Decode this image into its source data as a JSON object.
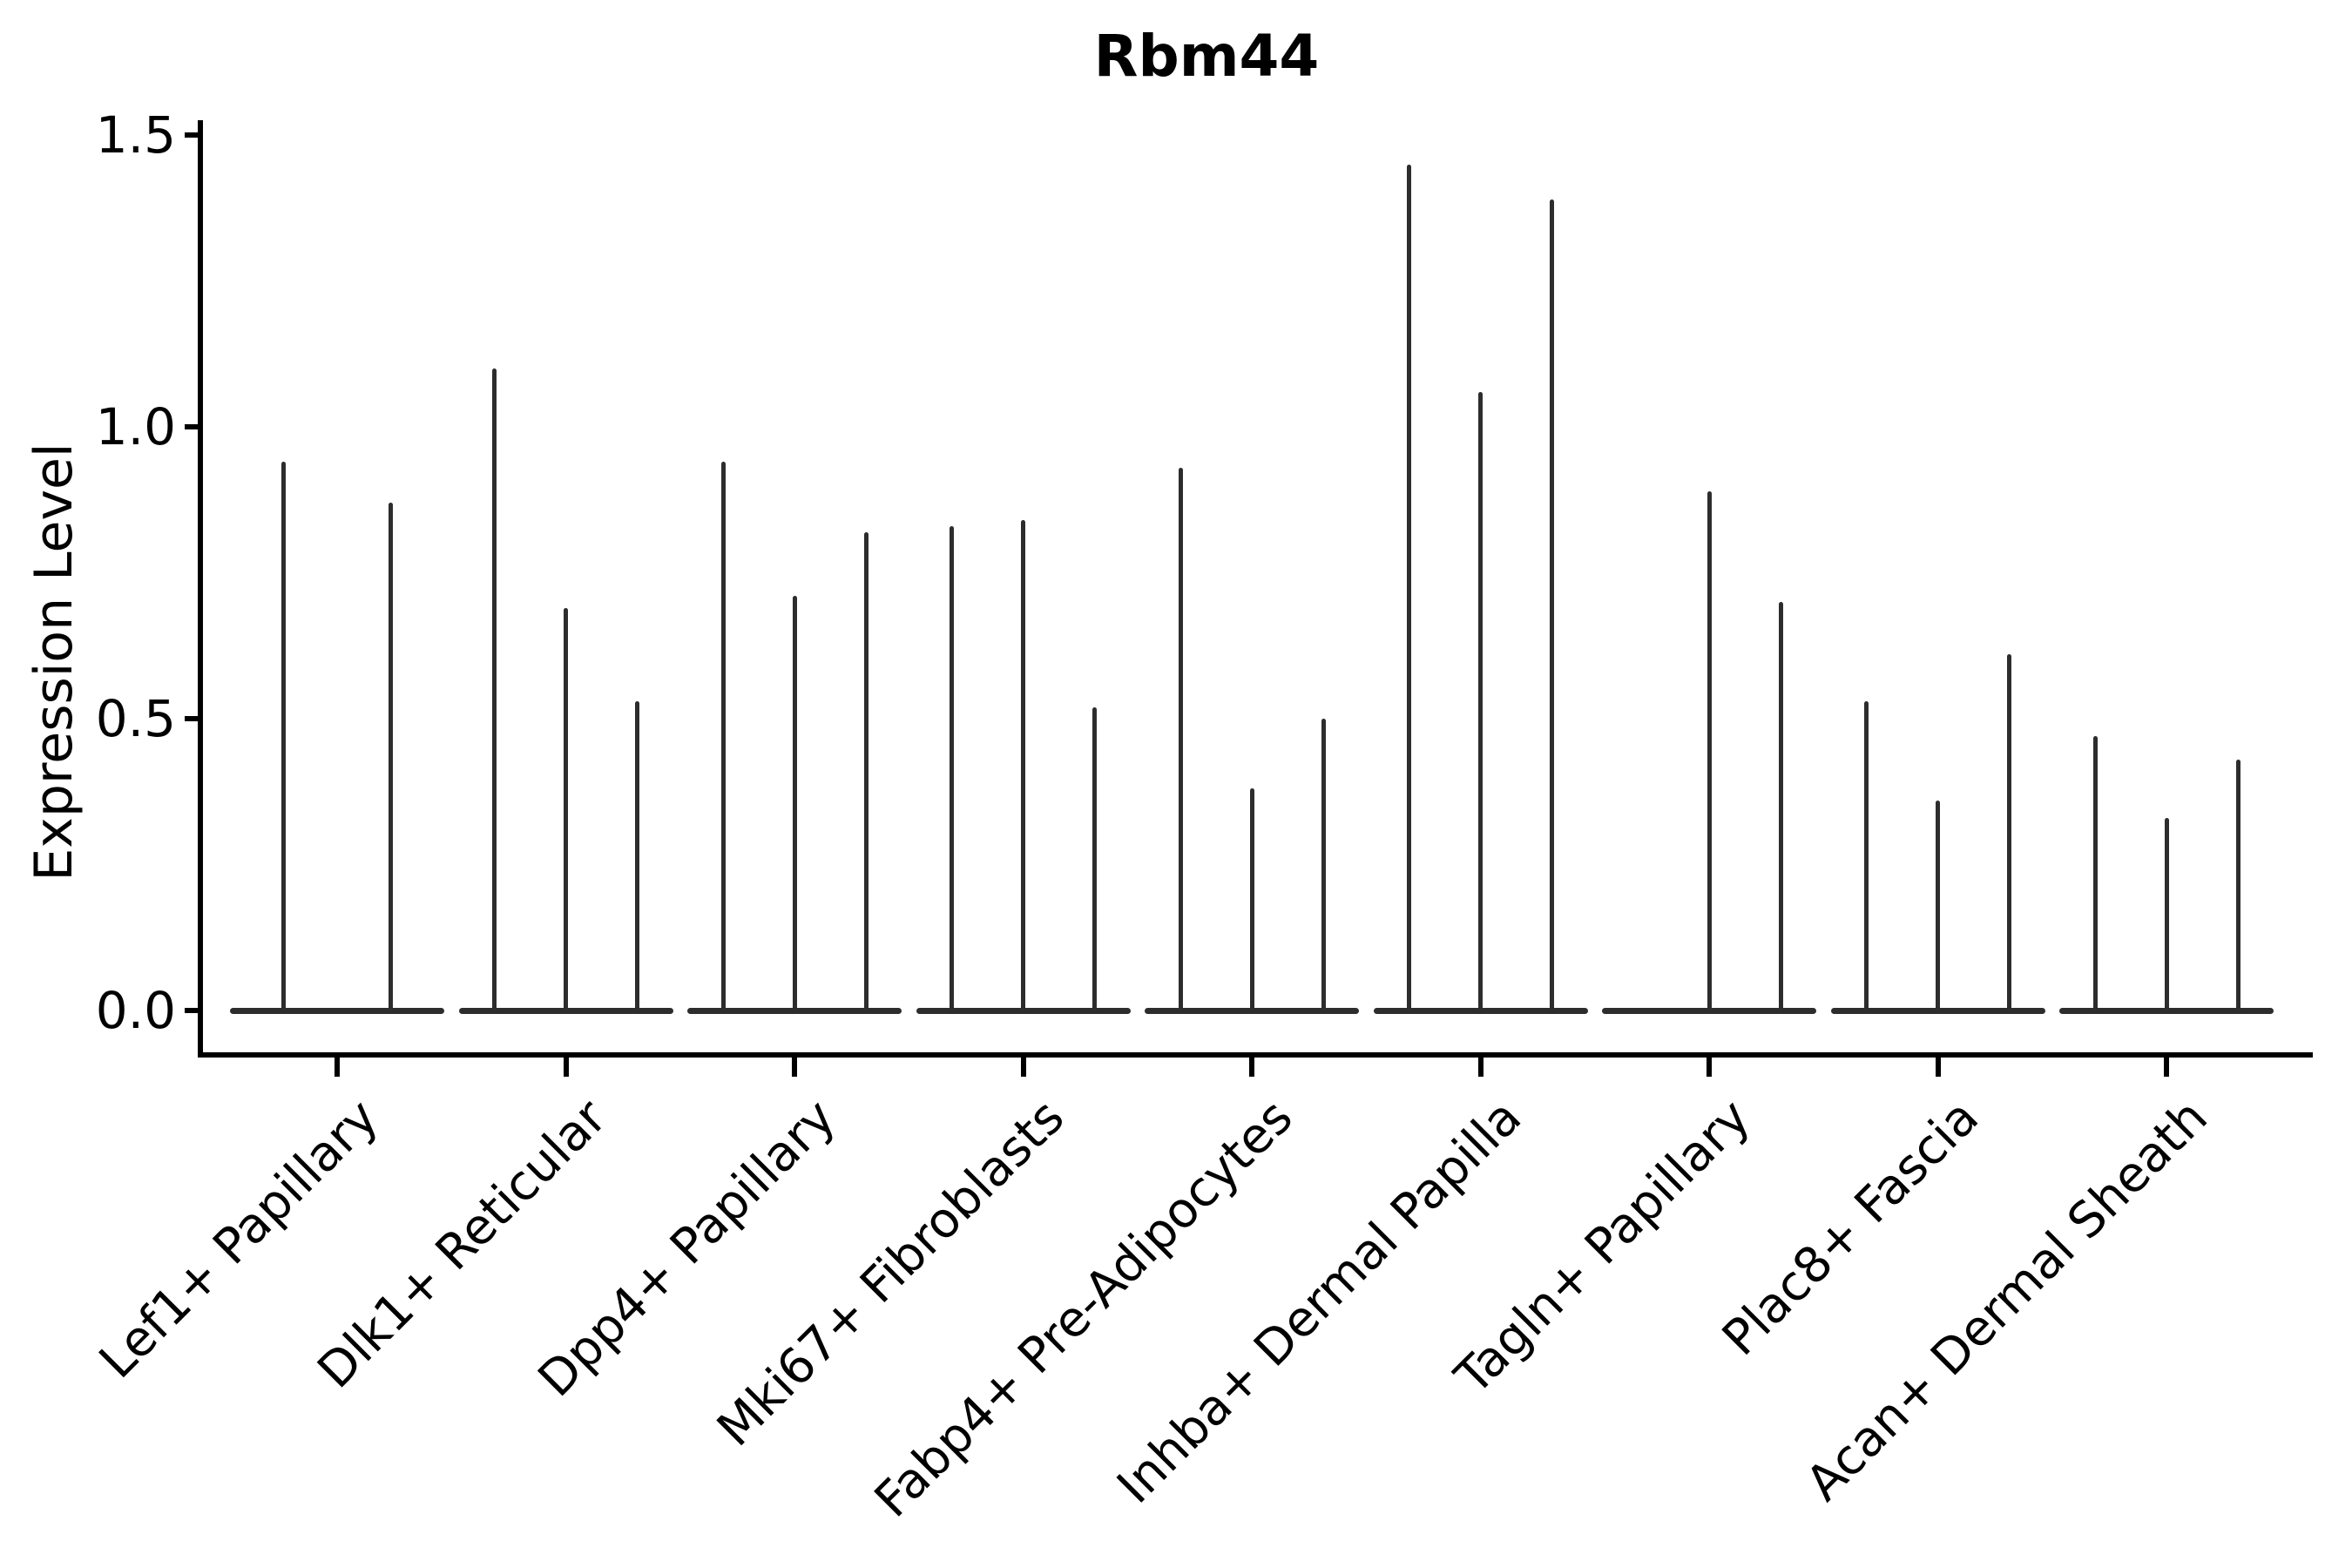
{
  "title": "Rbm44",
  "y_axis": {
    "label": "Expression Level",
    "tick_labels": [
      "0.0",
      "0.5",
      "1.0",
      "1.5"
    ],
    "tick_values": [
      0.0,
      0.5,
      1.0,
      1.5
    ]
  },
  "x_axis": {
    "tick_labels": [
      "Lef1+ Papillary",
      "Dlk1+ Reticular",
      "Dpp4+ Papillary",
      "Mki67+ Fibroblasts",
      "Fabp4+ Pre-Adipocytes",
      "Inhba+ Dermal Papilla",
      "Tagln+ Papillary",
      "Plac8+ Fascia",
      "Acan+ Dermal Sheath"
    ],
    "label_rotation_deg": 45
  },
  "colors": {
    "violin": "#2d2d2d",
    "axis": "#000000",
    "background": "#ffffff"
  },
  "chart_data": {
    "type": "violin",
    "title": "Rbm44",
    "xlabel": "",
    "ylabel": "Expression Level",
    "ylim": [
      0,
      1.5
    ],
    "y_ticks": [
      0.0,
      0.5,
      1.0,
      1.5
    ],
    "grid": false,
    "legend": false,
    "description": "Needle-thin violins: each violin is a flat baseline at expression 0 with a thin spike up to the maximum expression value; 2-3 violins per cell-type group; a max of 0 means a flat violin with no spike.",
    "categories": [
      "Lef1+ Papillary",
      "Dlk1+ Reticular",
      "Dpp4+ Papillary",
      "Mki67+ Fibroblasts",
      "Fabp4+ Pre-Adipocytes",
      "Inhba+ Dermal Papilla",
      "Tagln+ Papillary",
      "Plac8+ Fascia",
      "Acan+ Dermal Sheath"
    ],
    "groups": [
      {
        "category": "Lef1+ Papillary",
        "violin_max": [
          0.94,
          0.87
        ]
      },
      {
        "category": "Dlk1+ Reticular",
        "violin_max": [
          1.1,
          0.69,
          0.53
        ]
      },
      {
        "category": "Dpp4+ Papillary",
        "violin_max": [
          0.94,
          0.71,
          0.82
        ]
      },
      {
        "category": "Mki67+ Fibroblasts",
        "violin_max": [
          0.83,
          0.84,
          0.52
        ]
      },
      {
        "category": "Fabp4+ Pre-Adipocytes",
        "violin_max": [
          0.93,
          0.38,
          0.5
        ]
      },
      {
        "category": "Inhba+ Dermal Papilla",
        "violin_max": [
          1.45,
          1.06,
          1.39
        ]
      },
      {
        "category": "Tagln+ Papillary",
        "violin_max": [
          0.0,
          0.89,
          0.7
        ]
      },
      {
        "category": "Plac8+ Fascia",
        "violin_max": [
          0.53,
          0.36,
          0.61
        ]
      },
      {
        "category": "Acan+ Dermal Sheath",
        "violin_max": [
          0.47,
          0.33,
          0.43
        ]
      }
    ]
  }
}
